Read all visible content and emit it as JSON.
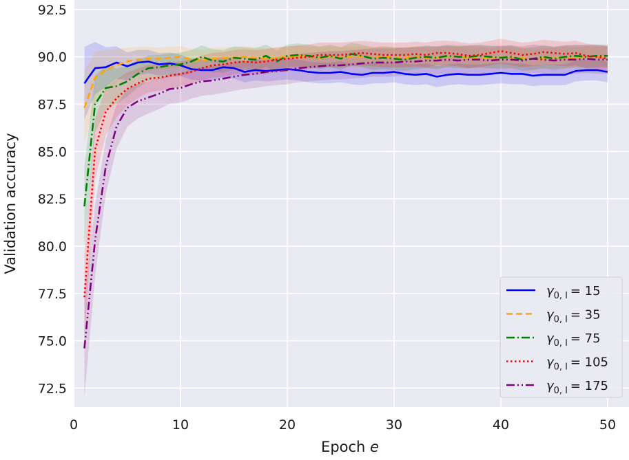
{
  "chart_data": {
    "type": "line",
    "xlabel_prefix": "Epoch ",
    "xlabel_var": "e",
    "ylabel": "Validation accuracy",
    "xlim": [
      0,
      52
    ],
    "ylim": [
      71.5,
      93.0
    ],
    "x_ticks": [
      0,
      10,
      20,
      30,
      40,
      50
    ],
    "y_ticks": [
      72.5,
      75.0,
      77.5,
      80.0,
      82.5,
      85.0,
      87.5,
      90.0,
      92.5
    ],
    "grid": true,
    "legend_position": "lower-right",
    "legend_symbol": "γ",
    "legend_subscript": "0, l",
    "background": "#eaeaf2",
    "series": [
      {
        "name": "γ0,l = 15",
        "label_value": "= 15",
        "color": "#0000ff",
        "dash": "",
        "band": 0.55,
        "values": [
          88.6,
          89.4,
          89.45,
          89.7,
          89.5,
          89.7,
          89.75,
          89.6,
          89.65,
          89.55,
          89.35,
          89.3,
          89.3,
          89.45,
          89.4,
          89.2,
          89.3,
          89.25,
          89.3,
          89.35,
          89.3,
          89.2,
          89.15,
          89.15,
          89.2,
          89.1,
          89.05,
          89.15,
          89.15,
          89.2,
          89.1,
          89.05,
          89.1,
          88.95,
          89.05,
          89.1,
          89.05,
          89.05,
          89.1,
          89.15,
          89.1,
          89.1,
          89.0,
          89.05,
          89.05,
          89.05,
          89.25,
          89.3,
          89.3,
          89.2
        ]
      },
      {
        "name": "γ0,l = 35",
        "label_value": "= 35",
        "color": "#ffa500",
        "dash": "9,5",
        "band": 0.55,
        "values": [
          87.3,
          88.9,
          89.3,
          89.55,
          89.75,
          89.85,
          89.9,
          89.9,
          89.95,
          90.0,
          89.85,
          89.8,
          89.9,
          89.95,
          89.95,
          90.0,
          89.95,
          89.9,
          89.95,
          90.0,
          90.05,
          90.0,
          89.95,
          90.0,
          89.95,
          90.0,
          90.0,
          89.95,
          90.0,
          89.95,
          89.95,
          90.0,
          89.95,
          89.95,
          90.0,
          90.0,
          89.95,
          89.95,
          89.9,
          90.0,
          89.95,
          89.95,
          89.85,
          89.9,
          89.95,
          89.95,
          89.95,
          90.0,
          90.0,
          90.0
        ]
      },
      {
        "name": "γ0,l = 75",
        "label_value": "= 75",
        "color": "#008000",
        "dash": "12,4,2,4",
        "band": 0.6,
        "values": [
          82.1,
          87.5,
          88.35,
          88.45,
          88.7,
          89.1,
          89.4,
          89.45,
          89.55,
          89.6,
          89.75,
          90.0,
          89.8,
          89.75,
          89.95,
          89.9,
          89.85,
          90.05,
          89.75,
          90.05,
          90.1,
          90.05,
          89.95,
          90.05,
          89.9,
          90.15,
          90.05,
          89.9,
          89.95,
          89.9,
          89.85,
          89.95,
          90.0,
          89.95,
          90.05,
          90.0,
          90.0,
          90.05,
          90.0,
          89.95,
          90.0,
          89.85,
          89.9,
          90.0,
          89.9,
          90.0,
          90.05,
          90.0,
          90.05,
          90.05
        ]
      },
      {
        "name": "γ0,l = 105",
        "label_value": "= 105",
        "color": "#ff0000",
        "dash": "2.5,3.5",
        "band": 0.65,
        "values": [
          77.3,
          85.1,
          87.1,
          87.8,
          88.3,
          88.6,
          88.85,
          88.9,
          89.0,
          89.1,
          89.2,
          89.4,
          89.55,
          89.6,
          89.7,
          89.75,
          89.7,
          89.75,
          89.85,
          89.9,
          89.95,
          90.0,
          90.1,
          90.1,
          90.1,
          90.15,
          90.2,
          90.15,
          90.1,
          90.1,
          90.1,
          90.15,
          90.1,
          90.2,
          90.2,
          90.15,
          90.05,
          90.1,
          90.2,
          90.3,
          90.2,
          90.1,
          90.15,
          90.25,
          90.2,
          90.15,
          90.2,
          90.05,
          90.0,
          89.9
        ]
      },
      {
        "name": "γ0,l = 175",
        "label_value": "= 175",
        "color": "#800080",
        "dash": "12,4,2,4,2,4",
        "band": 0.75,
        "values": [
          74.6,
          80.3,
          84.2,
          86.3,
          87.3,
          87.65,
          87.85,
          88.05,
          88.3,
          88.35,
          88.55,
          88.7,
          88.75,
          88.85,
          88.95,
          89.05,
          89.1,
          89.2,
          89.25,
          89.3,
          89.4,
          89.45,
          89.5,
          89.55,
          89.55,
          89.6,
          89.65,
          89.7,
          89.7,
          89.7,
          89.75,
          89.75,
          89.8,
          89.8,
          89.85,
          89.8,
          89.85,
          89.85,
          89.8,
          89.85,
          89.85,
          89.8,
          89.9,
          89.85,
          89.8,
          89.85,
          89.85,
          89.9,
          89.85,
          89.85
        ]
      }
    ]
  }
}
